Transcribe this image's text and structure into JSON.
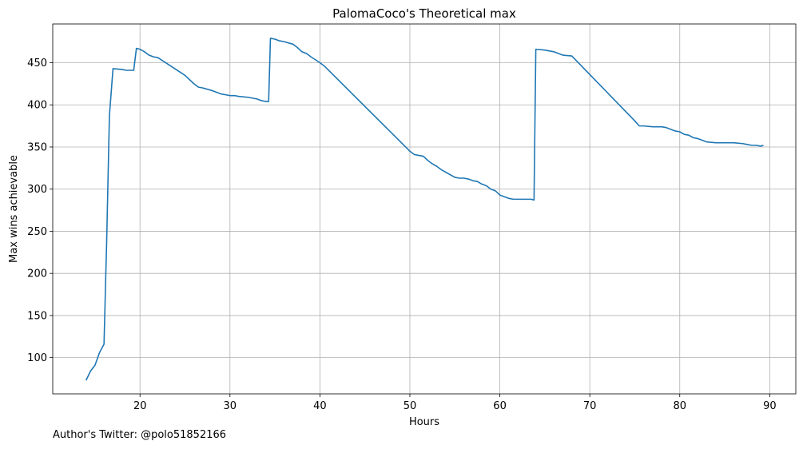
{
  "chart_data": {
    "type": "line",
    "title": "PalomaCoco's Theoretical max",
    "xlabel": "Hours",
    "ylabel": "Max wins achievable",
    "xlim": [
      10.3,
      92.9
    ],
    "ylim": [
      57,
      496
    ],
    "xticks": [
      20,
      30,
      40,
      50,
      60,
      70,
      80,
      90
    ],
    "yticks": [
      100,
      150,
      200,
      250,
      300,
      350,
      400,
      450
    ],
    "grid": true,
    "line_color": "#1f77b4",
    "series": [
      {
        "x": [
          14.0,
          14.5,
          15.0,
          15.5,
          16.0,
          16.3,
          16.6,
          17.0,
          18.0,
          18.5,
          19.0,
          19.3,
          19.6,
          20.0,
          20.5,
          21.0,
          21.5,
          22.0,
          23.0,
          24.0,
          25.0,
          26.0,
          26.5,
          27.0,
          28.0,
          29.0,
          30.0,
          30.5,
          31.0,
          32.0,
          33.0,
          33.5,
          34.0,
          34.3,
          34.5,
          35.0,
          35.5,
          36.0,
          37.0,
          37.5,
          38.0,
          38.5,
          39.0,
          40.0,
          40.5,
          50.0,
          50.5,
          51.0,
          51.5,
          52.0,
          52.5,
          53.0,
          53.5,
          54.0,
          55.0,
          55.5,
          56.0,
          56.5,
          57.0,
          57.5,
          58.0,
          58.5,
          59.0,
          59.5,
          60.0,
          60.5,
          61.0,
          61.5,
          62.0,
          63.0,
          63.5,
          63.8,
          64.0,
          65.0,
          66.0,
          67.0,
          68.0,
          75.0,
          75.5,
          76.0,
          77.0,
          78.0,
          78.5,
          79.0,
          79.5,
          80.0,
          80.5,
          81.0,
          81.5,
          82.0,
          82.5,
          83.0,
          84.0,
          85.0,
          86.0,
          87.0,
          87.5,
          88.0,
          88.5,
          89.0,
          89.3
        ],
        "y": [
          73,
          84,
          91,
          106,
          116,
          240,
          387,
          443,
          442,
          441,
          441,
          441,
          467,
          466,
          463,
          459,
          457,
          456,
          449,
          442,
          435,
          425,
          421,
          420,
          417,
          413,
          411,
          411,
          410,
          409,
          407,
          405,
          404,
          404,
          479,
          478,
          476,
          475,
          472,
          468,
          463,
          461,
          457,
          450,
          446,
          345,
          341,
          340,
          339,
          334,
          330,
          327,
          323,
          320,
          314,
          313,
          313,
          312,
          310,
          309,
          306,
          304,
          300,
          298,
          293,
          291,
          289,
          288,
          288,
          288,
          288,
          287,
          466,
          465,
          463,
          459,
          458,
          381,
          375,
          375,
          374,
          374,
          373,
          371,
          369,
          368,
          365,
          364,
          361,
          360,
          358,
          356,
          355,
          355,
          355,
          354,
          353,
          352,
          352,
          351,
          352
        ]
      }
    ]
  },
  "footnote": "Author's Twitter: @polo51852166"
}
